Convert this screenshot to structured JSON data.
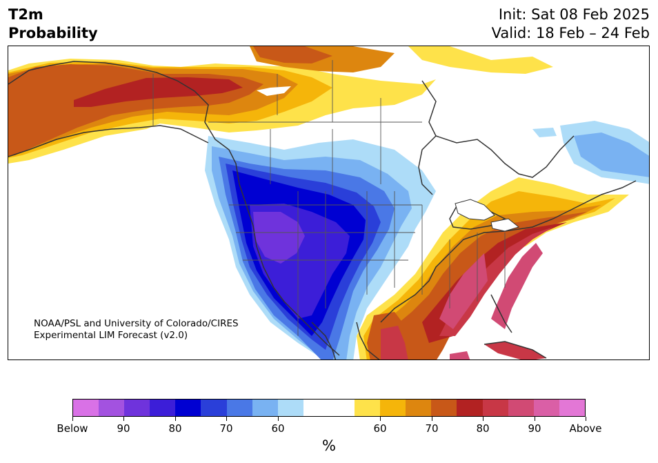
{
  "header": {
    "title_line1": "T2m",
    "title_line2": "Probability",
    "init": "Init: Sat 08 Feb 2025",
    "valid": "Valid: 18 Feb – 24 Feb"
  },
  "credit": {
    "line1": "NOAA/PSL and University of Colorado/CIRES",
    "line2": "Experimental LIM Forecast (v2.0)"
  },
  "colorbar": {
    "unit": "%",
    "colors": [
      "#d971e6",
      "#a352e0",
      "#6f33dc",
      "#3c1ed8",
      "#0000d2",
      "#2a3fd9",
      "#4a78e6",
      "#79b2f2",
      "#addcf8",
      "#ffffff",
      "#ffffff",
      "#fee24a",
      "#f5b50a",
      "#dd860f",
      "#c85818",
      "#b22222",
      "#c83746",
      "#d14a74",
      "#da5fa6",
      "#e377d6"
    ],
    "ticks": [
      {
        "label": "Below",
        "index": 0
      },
      {
        "label": "90",
        "index": 2
      },
      {
        "label": "80",
        "index": 4
      },
      {
        "label": "70",
        "index": 6
      },
      {
        "label": "60",
        "index": 8
      },
      {
        "label": "60",
        "index": 12
      },
      {
        "label": "70",
        "index": 14
      },
      {
        "label": "80",
        "index": 16
      },
      {
        "label": "90",
        "index": 18
      },
      {
        "label": "Above",
        "index": 20
      }
    ]
  }
}
